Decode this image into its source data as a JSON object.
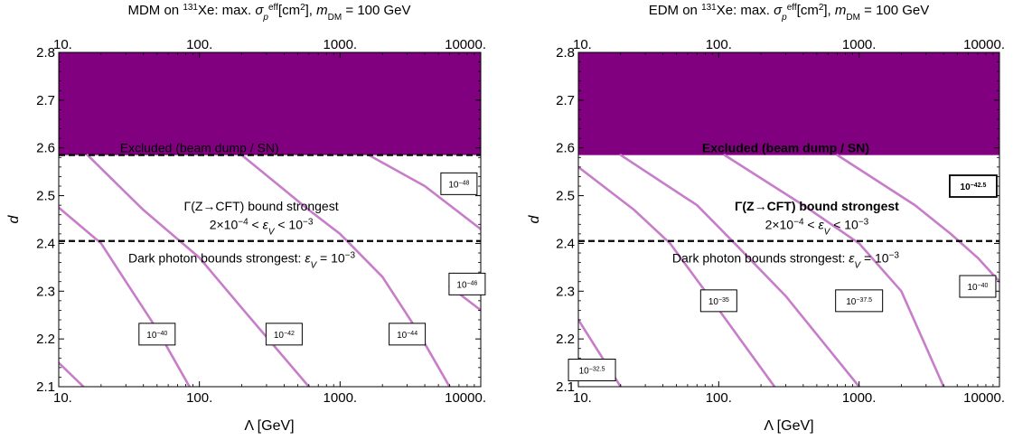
{
  "chart_data": [
    {
      "type": "contour",
      "title": "MDM on 131Xe: max. σp^eff[cm2], mDM = 100 GeV",
      "title_parts": {
        "a": "MDM on ",
        "iso": "131",
        "b": "Xe: max. ",
        "sym": "σ",
        "sub": "p",
        "sup": "eff",
        "c": "[cm",
        "cm_sup": "2",
        "d": "], ",
        "m": "m",
        "m_sub": "DM",
        "e": " = 100 GeV"
      },
      "xlabel": "Λ [GeV]",
      "ylabel": "d",
      "x_scale": "log",
      "xlim": [
        10,
        10000
      ],
      "ylim": [
        2.1,
        2.8
      ],
      "x_ticks": [
        10,
        100,
        1000,
        10000
      ],
      "x_tick_labels": [
        "10.",
        "100.",
        "1000.",
        "10000."
      ],
      "y_ticks": [
        2.1,
        2.2,
        2.3,
        2.4,
        2.5,
        2.6,
        2.7,
        2.8
      ],
      "y_tick_labels": [
        "2.1",
        "2.2",
        "2.3",
        "2.4",
        "2.5",
        "2.6",
        "2.7",
        "2.8"
      ],
      "excluded_region": {
        "ymin": 2.585,
        "ymax": 2.8,
        "color": "#800080",
        "label": "Excluded  (beam dump / SN)",
        "label_at": [
          100,
          2.6
        ]
      },
      "boundary_lines": [
        {
          "y": 2.585
        },
        {
          "y": 2.405
        }
      ],
      "annotations": [
        {
          "text": "Γ(Z→CFT) bound strongest",
          "at": [
            275,
            2.478
          ]
        },
        {
          "at": [
            275,
            2.44
          ],
          "parts": {
            "a": "2×10",
            "s1": "−4",
            "b": " < ",
            "eps": "ε",
            "sub": "V",
            "c": " < 10",
            "s2": "−3"
          }
        },
        {
          "at": [
            200,
            2.37
          ],
          "parts": {
            "a": "Dark photon bounds strongest: ",
            "eps": "ε",
            "sub": "V",
            "c": " = 10",
            "s2": "−3"
          }
        }
      ],
      "contour_color": "#c77dc9",
      "contours": [
        {
          "points": [
            [
              10,
              2.15
            ],
            [
              15,
              2.1
            ]
          ]
        },
        {
          "points": [
            [
              10,
              2.475
            ],
            [
              20,
              2.4
            ],
            [
              30,
              2.32
            ],
            [
              50,
              2.22
            ],
            [
              85,
              2.1
            ]
          ]
        },
        {
          "points": [
            [
              16,
              2.585
            ],
            [
              40,
              2.47
            ],
            [
              100,
              2.37
            ],
            [
              200,
              2.265
            ],
            [
              600,
              2.1
            ]
          ]
        },
        {
          "points": [
            [
              200,
              2.585
            ],
            [
              600,
              2.47
            ],
            [
              1000,
              2.42
            ],
            [
              2000,
              2.33
            ],
            [
              3500,
              2.22
            ],
            [
              6000,
              2.1
            ]
          ]
        },
        {
          "points": [
            [
              1600,
              2.585
            ],
            [
              4000,
              2.52
            ],
            [
              10000,
              2.43
            ]
          ]
        },
        {
          "points": [
            [
              10000,
              2.26
            ],
            [
              6000,
              2.31
            ]
          ]
        }
      ],
      "contour_labels": [
        {
          "text_base": "10",
          "text_exp": "−40",
          "at": [
            50,
            2.21
          ]
        },
        {
          "text_base": "10",
          "text_exp": "−42",
          "at": [
            400,
            2.21
          ]
        },
        {
          "text_base": "10",
          "text_exp": "−44",
          "at": [
            3000,
            2.21
          ]
        },
        {
          "text_base": "10",
          "text_exp": "−46",
          "at": [
            8000,
            2.315
          ]
        },
        {
          "text_base": "10",
          "text_exp": "−48",
          "at": [
            7000,
            2.525
          ]
        }
      ]
    },
    {
      "type": "contour",
      "title": "EDM on 131Xe: max. σp^eff[cm2], mDM = 100 GeV",
      "title_parts": {
        "a": "EDM on ",
        "iso": "131",
        "b": "Xe: max. ",
        "sym": "σ",
        "sub": "p",
        "sup": "eff",
        "c": "[cm",
        "cm_sup": "2",
        "d": "], ",
        "m": "m",
        "m_sub": "DM",
        "e": " = 100 GeV"
      },
      "xlabel": "Λ [GeV]",
      "ylabel": "d",
      "x_scale": "log",
      "xlim": [
        10,
        10000
      ],
      "ylim": [
        2.1,
        2.8
      ],
      "x_ticks": [
        10,
        100,
        1000,
        10000
      ],
      "x_tick_labels": [
        "10.",
        "100.",
        "1000.",
        "10000."
      ],
      "y_ticks": [
        2.1,
        2.2,
        2.3,
        2.4,
        2.5,
        2.6,
        2.7,
        2.8
      ],
      "y_tick_labels": [
        "2.1",
        "2.2",
        "2.3",
        "2.4",
        "2.5",
        "2.6",
        "2.7",
        "2.8"
      ],
      "excluded_region": {
        "ymin": 2.585,
        "ymax": 2.8,
        "color": "#800080",
        "label": "Excluded  (beam dump / SN)",
        "label_at": [
          300,
          2.6
        ]
      },
      "boundary_lines": [
        {
          "y": 2.405
        }
      ],
      "annotations": [
        {
          "text": "Γ(Z→CFT) bound strongest",
          "at": [
            500,
            2.478
          ]
        },
        {
          "at": [
            500,
            2.44
          ],
          "parts": {
            "a": "2×10",
            "s1": "−4",
            "b": " < ",
            "eps": "ε",
            "sub": "V",
            "c": " < 10",
            "s2": "−3"
          }
        },
        {
          "at": [
            300,
            2.37
          ],
          "parts": {
            "a": "Dark photon bounds strongest: ",
            "eps": "ε",
            "sub": "V",
            "c": " = 10",
            "s2": "−3"
          }
        }
      ],
      "contour_color": "#c77dc9",
      "contours": [
        {
          "points": [
            [
              10,
              2.24
            ],
            [
              20,
              2.1
            ]
          ]
        },
        {
          "points": [
            [
              10,
              2.56
            ],
            [
              25,
              2.47
            ],
            [
              45,
              2.4
            ],
            [
              90,
              2.28
            ],
            [
              250,
              2.1
            ]
          ]
        },
        {
          "points": [
            [
              20,
              2.585
            ],
            [
              70,
              2.48
            ],
            [
              130,
              2.4
            ],
            [
              300,
              2.29
            ],
            [
              1000,
              2.1
            ]
          ]
        },
        {
          "points": [
            [
              110,
              2.585
            ],
            [
              400,
              2.48
            ],
            [
              1000,
              2.4
            ],
            [
              2000,
              2.3
            ],
            [
              4000,
              2.1
            ]
          ]
        },
        {
          "points": [
            [
              700,
              2.585
            ],
            [
              2500,
              2.48
            ],
            [
              4500,
              2.42
            ],
            [
              7000,
              2.37
            ],
            [
              10000,
              2.32
            ]
          ]
        }
      ],
      "contour_labels": [
        {
          "text_base": "10",
          "text_exp": "−32.5",
          "at": [
            12.5,
            2.135
          ]
        },
        {
          "text_base": "10",
          "text_exp": "−35",
          "at": [
            100,
            2.28
          ]
        },
        {
          "text_base": "10",
          "text_exp": "−37.5",
          "at": [
            1000,
            2.28
          ]
        },
        {
          "text_base": "10",
          "text_exp": "−40",
          "at": [
            7000,
            2.31
          ]
        },
        {
          "text_base": "10",
          "text_exp": "−42.5",
          "at": [
            6500,
            2.52
          ]
        }
      ]
    }
  ]
}
